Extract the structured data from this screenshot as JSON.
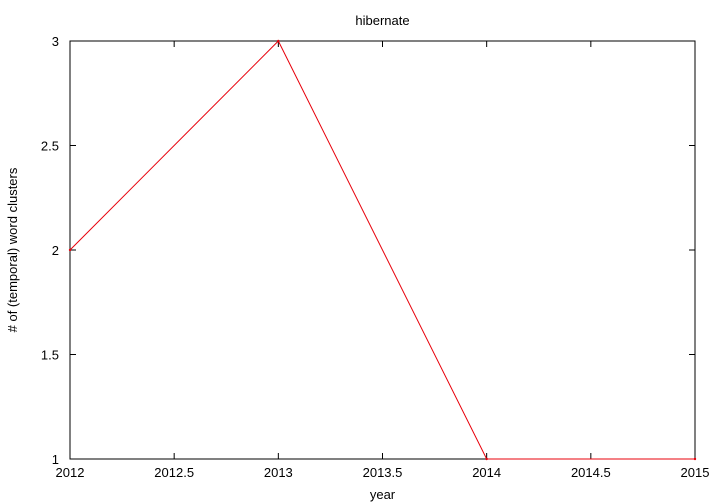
{
  "chart_data": {
    "type": "line",
    "title": "hibernate",
    "xlabel": "year",
    "ylabel": "# of (temporal) word clusters",
    "xlim": [
      2012,
      2015
    ],
    "ylim": [
      1,
      3
    ],
    "x_ticks": [
      "2012",
      "2012.5",
      "2013",
      "2013.5",
      "2014",
      "2014.5",
      "2015"
    ],
    "y_ticks": [
      "1",
      "1.5",
      "2",
      "2.5",
      "3"
    ],
    "grid": false,
    "legend": "none",
    "series": [
      {
        "color": "#e8000b",
        "x": [
          2012,
          2013,
          2014,
          2015
        ],
        "y": [
          2,
          3,
          1,
          1
        ]
      }
    ]
  }
}
